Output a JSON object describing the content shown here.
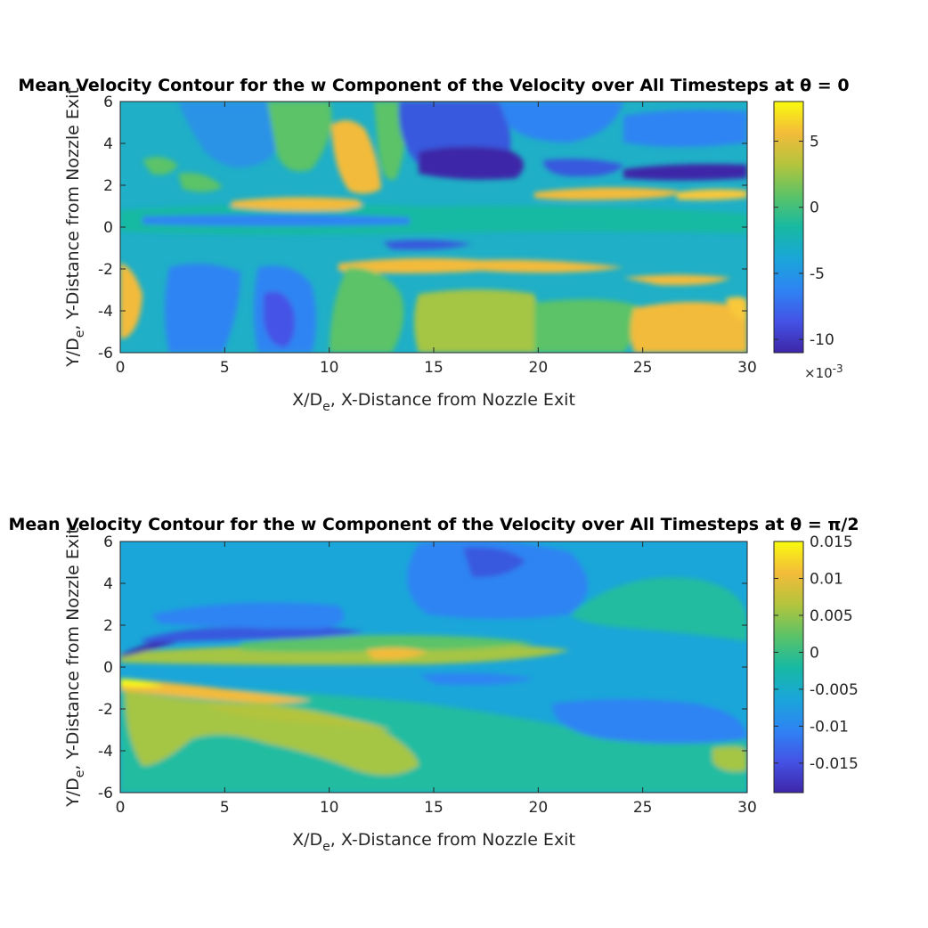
{
  "chart_data": [
    {
      "type": "heatmap",
      "title": "Mean Velocity Contour for the w Component of the Velocity over All Timesteps at θ = 0",
      "xlabel": "X/De, X-Distance from Nozzle Exit",
      "ylabel": "Y/De, Y-Distance from Nozzle Exit",
      "xlim": [
        0,
        30
      ],
      "ylim": [
        -6,
        6
      ],
      "xticks": [
        0,
        5,
        10,
        15,
        20,
        25,
        30
      ],
      "yticks": [
        -6,
        -4,
        -2,
        0,
        2,
        4,
        6
      ],
      "colorbar": {
        "range": [
          -0.011,
          0.008
        ],
        "ticks": [
          -0.01,
          -0.005,
          0,
          0.005
        ],
        "tick_labels": [
          "-10",
          "-5",
          "0",
          "5"
        ],
        "exponent_label": "×10",
        "exponent": "-3",
        "colormap": "parula"
      },
      "field_regions": [
        {
          "x": 11.2,
          "y": 3.5,
          "value": 0.0065
        },
        {
          "x": 16.8,
          "y": 3.0,
          "value": -0.0105
        },
        {
          "x": 27.5,
          "y": 2.7,
          "value": -0.01
        },
        {
          "x": 7.8,
          "y": -4.8,
          "value": -0.01
        },
        {
          "x": 27.0,
          "y": -5.2,
          "value": 0.006
        },
        {
          "x": 20.5,
          "y": -1.9,
          "value": 0.007
        },
        {
          "x": 0.6,
          "y": -3.8,
          "value": 0.006
        }
      ]
    },
    {
      "type": "heatmap",
      "title": "Mean Velocity Contour for the w Component of the Velocity over All Timesteps at θ = π/2",
      "xlabel": "X/De, X-Distance from Nozzle Exit",
      "ylabel": "Y/De, Y-Distance from Nozzle Exit",
      "xlim": [
        0,
        30
      ],
      "ylim": [
        -6,
        6
      ],
      "xticks": [
        0,
        5,
        10,
        15,
        20,
        25,
        30
      ],
      "yticks": [
        -6,
        -4,
        -2,
        0,
        2,
        4,
        6
      ],
      "colorbar": {
        "range": [
          -0.019,
          0.015
        ],
        "ticks": [
          -0.015,
          -0.01,
          -0.005,
          0,
          0.005,
          0.01,
          0.015
        ],
        "tick_labels": [
          "-0.015",
          "-0.01",
          "-0.005",
          "0",
          "0.005",
          "0.01",
          "0.015"
        ],
        "colormap": "parula"
      },
      "field_regions": [
        {
          "x": 1.5,
          "y": 0.8,
          "value": -0.018
        },
        {
          "x": 2.0,
          "y": -0.9,
          "value": 0.014
        },
        {
          "x": 13.0,
          "y": 0.5,
          "value": 0.01
        },
        {
          "x": 5.0,
          "y": -2.5,
          "value": 0.004
        },
        {
          "x": 23.0,
          "y": 4.5,
          "value": -0.01
        }
      ]
    }
  ]
}
